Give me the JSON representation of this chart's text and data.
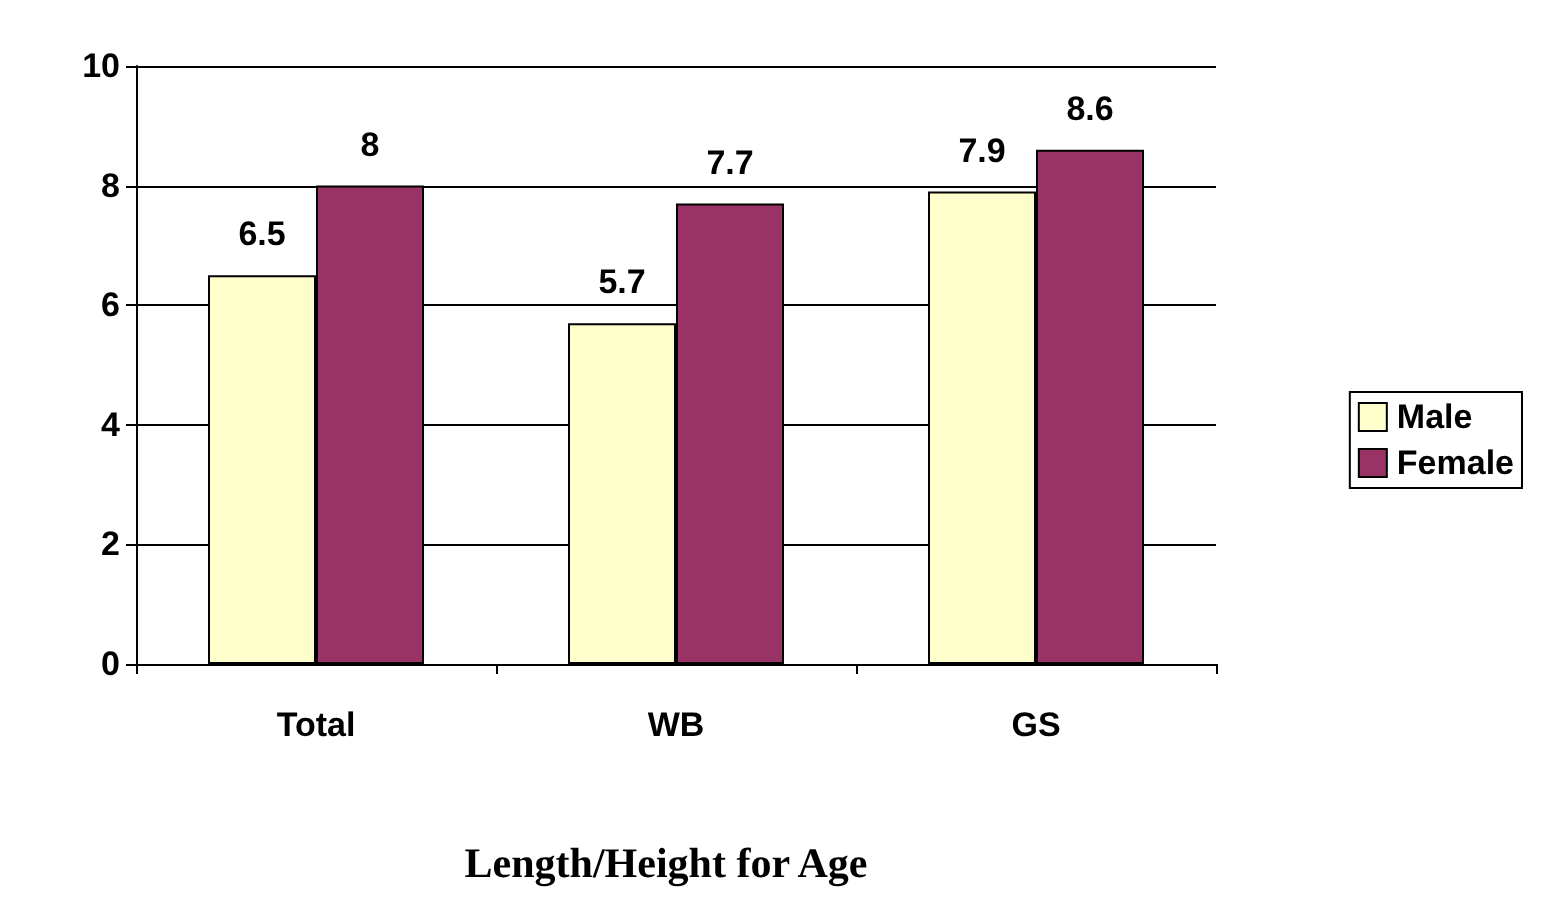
{
  "chart_data": {
    "type": "bar",
    "title": "Length/Height for Age",
    "categories": [
      "Total",
      "WB",
      "GS"
    ],
    "series": [
      {
        "name": "Male",
        "color": "#ffffcc",
        "values": [
          6.5,
          5.7,
          7.9
        ]
      },
      {
        "name": "Female",
        "color": "#993366",
        "values": [
          8,
          7.7,
          8.6
        ]
      }
    ],
    "ylim": [
      0,
      10
    ],
    "yticks": [
      0,
      2,
      4,
      6,
      8,
      10
    ],
    "grid": "y",
    "legend": "right",
    "data_labels": true
  }
}
